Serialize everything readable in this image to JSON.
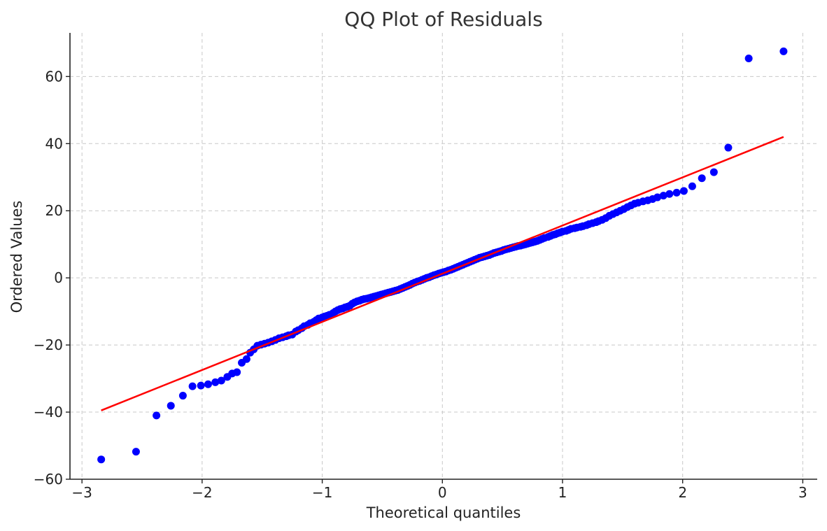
{
  "chart_data": {
    "type": "scatter",
    "title": "QQ Plot of Residuals",
    "xlabel": "Theoretical quantiles",
    "ylabel": "Ordered Values",
    "xlim": [
      -3.1,
      3.12
    ],
    "ylim": [
      -60,
      73
    ],
    "x_ticks": [
      -3,
      -2,
      -1,
      0,
      1,
      2,
      3
    ],
    "x_tick_labels": [
      "−3",
      "−2",
      "−1",
      "0",
      "1",
      "2",
      "3"
    ],
    "y_ticks": [
      -60,
      -40,
      -20,
      0,
      20,
      40,
      60
    ],
    "y_tick_labels": [
      "−60",
      "−40",
      "−20",
      "0",
      "20",
      "40",
      "60"
    ],
    "grid": true,
    "series": [
      {
        "kind": "points",
        "color": "#0000ff",
        "points": [
          [
            -2.84,
            -54.1
          ],
          [
            -2.55,
            -51.8
          ],
          [
            -2.38,
            -41.0
          ],
          [
            -2.26,
            -38.1
          ],
          [
            -2.16,
            -35.1
          ],
          [
            -2.08,
            -32.3
          ],
          [
            -2.01,
            -32.1
          ],
          [
            -1.95,
            -31.7
          ],
          [
            -1.89,
            -31.1
          ],
          [
            -1.84,
            -30.6
          ],
          [
            -1.79,
            -29.5
          ],
          [
            -1.75,
            -28.5
          ],
          [
            -1.71,
            -28.1
          ],
          [
            -1.67,
            -25.3
          ],
          [
            -1.63,
            -24.2
          ],
          [
            -1.6,
            -22.3
          ],
          [
            -1.57,
            -21.3
          ],
          [
            -1.54,
            -20.2
          ],
          [
            -1.51,
            -19.9
          ],
          [
            -1.48,
            -19.6
          ],
          [
            -1.45,
            -19.3
          ],
          [
            -1.42,
            -18.9
          ],
          [
            -1.39,
            -18.5
          ],
          [
            -1.36,
            -18.0
          ],
          [
            -1.33,
            -17.7
          ],
          [
            -1.3,
            -17.4
          ],
          [
            -1.28,
            -17.1
          ],
          [
            -1.25,
            -16.9
          ],
          [
            -1.22,
            -16.0
          ],
          [
            -1.2,
            -15.6
          ],
          [
            -1.17,
            -15.0
          ],
          [
            -1.15,
            -14.4
          ],
          [
            -1.12,
            -14.0
          ],
          [
            -1.1,
            -13.5
          ],
          [
            -1.07,
            -13.1
          ],
          [
            -1.05,
            -12.6
          ],
          [
            -1.03,
            -12.1
          ],
          [
            -1.0,
            -11.8
          ],
          [
            -0.98,
            -11.5
          ],
          [
            -0.96,
            -11.3
          ],
          [
            -0.94,
            -11.0
          ],
          [
            -0.91,
            -10.5
          ],
          [
            -0.89,
            -10.0
          ],
          [
            -0.87,
            -9.6
          ],
          [
            -0.85,
            -9.3
          ],
          [
            -0.83,
            -9.1
          ],
          [
            -0.81,
            -8.8
          ],
          [
            -0.79,
            -8.6
          ],
          [
            -0.77,
            -8.3
          ],
          [
            -0.75,
            -7.7
          ],
          [
            -0.73,
            -7.3
          ],
          [
            -0.71,
            -7.0
          ],
          [
            -0.69,
            -6.8
          ],
          [
            -0.67,
            -6.5
          ],
          [
            -0.65,
            -6.3
          ],
          [
            -0.63,
            -6.2
          ],
          [
            -0.61,
            -6.0
          ],
          [
            -0.59,
            -5.8
          ],
          [
            -0.57,
            -5.6
          ],
          [
            -0.55,
            -5.4
          ],
          [
            -0.53,
            -5.2
          ],
          [
            -0.51,
            -5.0
          ],
          [
            -0.49,
            -4.8
          ],
          [
            -0.47,
            -4.6
          ],
          [
            -0.45,
            -4.4
          ],
          [
            -0.43,
            -4.2
          ],
          [
            -0.41,
            -4.0
          ],
          [
            -0.39,
            -3.8
          ],
          [
            -0.37,
            -3.6
          ],
          [
            -0.35,
            -3.3
          ],
          [
            -0.33,
            -3.0
          ],
          [
            -0.31,
            -2.7
          ],
          [
            -0.29,
            -2.4
          ],
          [
            -0.27,
            -2.1
          ],
          [
            -0.25,
            -1.7
          ],
          [
            -0.23,
            -1.4
          ],
          [
            -0.21,
            -1.1
          ],
          [
            -0.19,
            -0.9
          ],
          [
            -0.17,
            -0.6
          ],
          [
            -0.15,
            -0.3
          ],
          [
            -0.13,
            0.0
          ],
          [
            -0.11,
            0.2
          ],
          [
            -0.09,
            0.5
          ],
          [
            -0.07,
            0.8
          ],
          [
            -0.05,
            1.0
          ],
          [
            -0.03,
            1.3
          ],
          [
            -0.01,
            1.5
          ],
          [
            0.01,
            1.7
          ],
          [
            0.03,
            1.9
          ],
          [
            0.05,
            2.2
          ],
          [
            0.07,
            2.4
          ],
          [
            0.09,
            2.7
          ],
          [
            0.11,
            3.0
          ],
          [
            0.13,
            3.3
          ],
          [
            0.15,
            3.6
          ],
          [
            0.17,
            3.9
          ],
          [
            0.19,
            4.2
          ],
          [
            0.21,
            4.5
          ],
          [
            0.23,
            4.8
          ],
          [
            0.25,
            5.1
          ],
          [
            0.27,
            5.4
          ],
          [
            0.29,
            5.7
          ],
          [
            0.31,
            6.0
          ],
          [
            0.33,
            6.2
          ],
          [
            0.35,
            6.4
          ],
          [
            0.37,
            6.6
          ],
          [
            0.39,
            6.8
          ],
          [
            0.41,
            7.1
          ],
          [
            0.43,
            7.4
          ],
          [
            0.45,
            7.6
          ],
          [
            0.47,
            7.8
          ],
          [
            0.49,
            8.0
          ],
          [
            0.51,
            8.3
          ],
          [
            0.53,
            8.5
          ],
          [
            0.55,
            8.7
          ],
          [
            0.57,
            8.9
          ],
          [
            0.59,
            9.1
          ],
          [
            0.61,
            9.3
          ],
          [
            0.63,
            9.5
          ],
          [
            0.65,
            9.6
          ],
          [
            0.67,
            9.8
          ],
          [
            0.69,
            10.0
          ],
          [
            0.71,
            10.2
          ],
          [
            0.73,
            10.4
          ],
          [
            0.75,
            10.6
          ],
          [
            0.77,
            10.8
          ],
          [
            0.79,
            11.0
          ],
          [
            0.81,
            11.3
          ],
          [
            0.83,
            11.6
          ],
          [
            0.85,
            11.9
          ],
          [
            0.88,
            12.2
          ],
          [
            0.9,
            12.5
          ],
          [
            0.92,
            12.8
          ],
          [
            0.94,
            13.0
          ],
          [
            0.96,
            13.3
          ],
          [
            0.98,
            13.5
          ],
          [
            1.0,
            13.8
          ],
          [
            1.03,
            14.0
          ],
          [
            1.05,
            14.3
          ],
          [
            1.07,
            14.6
          ],
          [
            1.1,
            14.8
          ],
          [
            1.12,
            15.0
          ],
          [
            1.15,
            15.2
          ],
          [
            1.17,
            15.4
          ],
          [
            1.2,
            15.7
          ],
          [
            1.22,
            16.0
          ],
          [
            1.25,
            16.3
          ],
          [
            1.28,
            16.6
          ],
          [
            1.3,
            16.9
          ],
          [
            1.33,
            17.3
          ],
          [
            1.36,
            17.8
          ],
          [
            1.39,
            18.5
          ],
          [
            1.42,
            19.0
          ],
          [
            1.45,
            19.5
          ],
          [
            1.48,
            20.0
          ],
          [
            1.51,
            20.5
          ],
          [
            1.54,
            21.1
          ],
          [
            1.57,
            21.6
          ],
          [
            1.6,
            22.1
          ],
          [
            1.63,
            22.4
          ],
          [
            1.67,
            22.8
          ],
          [
            1.71,
            23.1
          ],
          [
            1.75,
            23.5
          ],
          [
            1.79,
            24.0
          ],
          [
            1.84,
            24.5
          ],
          [
            1.89,
            25.0
          ],
          [
            1.95,
            25.4
          ],
          [
            2.01,
            25.9
          ],
          [
            2.08,
            27.3
          ],
          [
            2.16,
            29.7
          ],
          [
            2.26,
            31.5
          ],
          [
            2.38,
            38.8
          ],
          [
            2.55,
            65.4
          ],
          [
            2.84,
            67.5
          ]
        ]
      },
      {
        "kind": "line",
        "color": "#ff0000",
        "points": [
          [
            -2.84,
            -39.5
          ],
          [
            2.84,
            42.0
          ]
        ]
      }
    ]
  }
}
